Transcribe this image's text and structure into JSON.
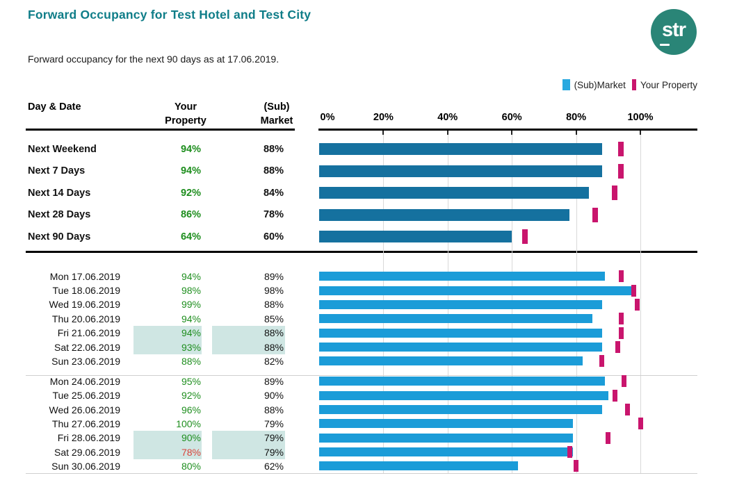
{
  "title": "Forward Occupancy for Test Hotel and Test City",
  "subtitle": "Forward occupancy for the next 90 days as at 17.06.2019.",
  "logo_text": "str",
  "legend": {
    "market_label": "(Sub)Market",
    "property_label": "Your Property"
  },
  "table_headers": {
    "day_date": "Day & Date",
    "property_line1": "Your",
    "property_line2": "Property",
    "market_line1": "(Sub)",
    "market_line2": "Market"
  },
  "colors": {
    "title_teal": "#0f7d88",
    "logo_teal": "#2a8577",
    "market_bar_summary": "#15719f",
    "market_bar_daily": "#1b9cd8",
    "legend_market": "#29a9e0",
    "property_marker": "#c9156d",
    "good_green": "#1e8e1e",
    "bad_red": "#d9443b",
    "weekend_highlight": "#cfe6e3",
    "grid": "#d9d9d9",
    "divider": "#cfcfcf"
  },
  "chart_data": {
    "type": "bar",
    "orientation": "horizontal",
    "xlim": [
      0,
      100
    ],
    "x_tick_labels": [
      "0%",
      "20%",
      "40%",
      "60%",
      "80%",
      "100%"
    ],
    "grid": true,
    "legend_position": "top-right",
    "series_legend": [
      {
        "name": "(Sub)Market",
        "style": "bar"
      },
      {
        "name": "Your Property",
        "style": "marker"
      }
    ],
    "summary_rows": [
      {
        "label": "Next Weekend",
        "your_property": 94,
        "submarket": 88,
        "your_property_display": "94%",
        "submarket_display": "88%"
      },
      {
        "label": "Next 7 Days",
        "your_property": 94,
        "submarket": 88,
        "your_property_display": "94%",
        "submarket_display": "88%"
      },
      {
        "label": "Next 14 Days",
        "your_property": 92,
        "submarket": 84,
        "your_property_display": "92%",
        "submarket_display": "84%"
      },
      {
        "label": "Next 28 Days",
        "your_property": 86,
        "submarket": 78,
        "your_property_display": "86%",
        "submarket_display": "78%"
      },
      {
        "label": "Next 90 Days",
        "your_property": 64,
        "submarket": 60,
        "your_property_display": "64%",
        "submarket_display": "60%"
      }
    ],
    "daily_weeks": [
      {
        "rows": [
          {
            "label": "Mon 17.06.2019",
            "your_property": 94,
            "submarket": 89,
            "your_property_display": "94%",
            "submarket_display": "89%",
            "weekend_highlight": false,
            "below_market": false
          },
          {
            "label": "Tue 18.06.2019",
            "your_property": 98,
            "submarket": 98,
            "your_property_display": "98%",
            "submarket_display": "98%",
            "weekend_highlight": false,
            "below_market": false
          },
          {
            "label": "Wed 19.06.2019",
            "your_property": 99,
            "submarket": 88,
            "your_property_display": "99%",
            "submarket_display": "88%",
            "weekend_highlight": false,
            "below_market": false
          },
          {
            "label": "Thu 20.06.2019",
            "your_property": 94,
            "submarket": 85,
            "your_property_display": "94%",
            "submarket_display": "85%",
            "weekend_highlight": false,
            "below_market": false
          },
          {
            "label": "Fri 21.06.2019",
            "your_property": 94,
            "submarket": 88,
            "your_property_display": "94%",
            "submarket_display": "88%",
            "weekend_highlight": true,
            "below_market": false
          },
          {
            "label": "Sat 22.06.2019",
            "your_property": 93,
            "submarket": 88,
            "your_property_display": "93%",
            "submarket_display": "88%",
            "weekend_highlight": true,
            "below_market": false
          },
          {
            "label": "Sun 23.06.2019",
            "your_property": 88,
            "submarket": 82,
            "your_property_display": "88%",
            "submarket_display": "82%",
            "weekend_highlight": false,
            "below_market": false
          }
        ]
      },
      {
        "rows": [
          {
            "label": "Mon 24.06.2019",
            "your_property": 95,
            "submarket": 89,
            "your_property_display": "95%",
            "submarket_display": "89%",
            "weekend_highlight": false,
            "below_market": false
          },
          {
            "label": "Tue 25.06.2019",
            "your_property": 92,
            "submarket": 90,
            "your_property_display": "92%",
            "submarket_display": "90%",
            "weekend_highlight": false,
            "below_market": false
          },
          {
            "label": "Wed 26.06.2019",
            "your_property": 96,
            "submarket": 88,
            "your_property_display": "96%",
            "submarket_display": "88%",
            "weekend_highlight": false,
            "below_market": false
          },
          {
            "label": "Thu 27.06.2019",
            "your_property": 100,
            "submarket": 79,
            "your_property_display": "100%",
            "submarket_display": "79%",
            "weekend_highlight": false,
            "below_market": false
          },
          {
            "label": "Fri 28.06.2019",
            "your_property": 90,
            "submarket": 79,
            "your_property_display": "90%",
            "submarket_display": "79%",
            "weekend_highlight": true,
            "below_market": false
          },
          {
            "label": "Sat 29.06.2019",
            "your_property": 78,
            "submarket": 79,
            "your_property_display": "78%",
            "submarket_display": "79%",
            "weekend_highlight": true,
            "below_market": true
          },
          {
            "label": "Sun 30.06.2019",
            "your_property": 80,
            "submarket": 62,
            "your_property_display": "80%",
            "submarket_display": "62%",
            "weekend_highlight": false,
            "below_market": false
          }
        ]
      }
    ]
  }
}
